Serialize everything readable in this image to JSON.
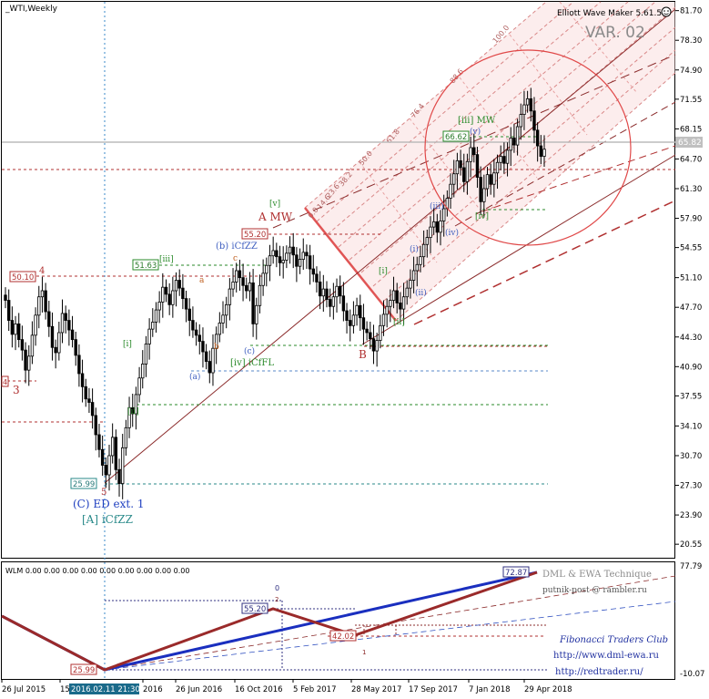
{
  "window": {
    "symbol": "_WTI,Weekly",
    "indicator_name": "Elliott Wave Maker 5.61.5",
    "variant": "VAR. 02",
    "current_price": "65.82"
  },
  "y_axis_main": [
    "81.70",
    "78.30",
    "74.90",
    "71.55",
    "68.15",
    "64.70",
    "61.30",
    "57.90",
    "54.55",
    "51.10",
    "47.70",
    "44.30",
    "40.90",
    "37.55",
    "34.10",
    "30.70",
    "27.30",
    "23.90",
    "20.55"
  ],
  "y_axis_sub": [
    "77.79",
    "-10.07"
  ],
  "x_axis": [
    "26 Jul 2015",
    "15",
    "2016.02.11 21:30",
    "2016",
    "26 Jun 2016",
    "16 Oct 2016",
    "5 Feb 2017",
    "28 May 2017",
    "17 Sep 2017",
    "7 Jan 2018",
    "29 Apr 2018"
  ],
  "labels": {
    "a_mw": "A MW",
    "b": "B",
    "c_ed": "(C) ED ext. 1",
    "a_icfzz": "[A] iCfZZ",
    "b_icfzz": "(b) iCfZZ",
    "iv_icffl": "[iv] iCfFL",
    "iii_mw": "[iii] MW",
    "w3": "3",
    "w4": "4",
    "w5": "5",
    "a_small": "a",
    "b_small": "b",
    "c_small": "c",
    "pa": "(a)",
    "pc": "(c)",
    "pi": "(i)",
    "pii": "(ii)",
    "piii": "(iii)",
    "piv": "(iv)",
    "pv": "(v)",
    "bi": "[i]",
    "bii": "[ii]",
    "biii": "[iii]",
    "bv": "[v]",
    "bi2": "[i]",
    "bii2": "[ii]",
    "biv": "[iv]"
  },
  "price_boxes": {
    "p5010": "50.10",
    "p5163": "51.63",
    "p5520": "55.20",
    "p6662": "66.62",
    "p2599": "25.99",
    "left_tag": "4"
  },
  "fib_labels": [
    "100.0",
    "88.6",
    "76.4",
    "61.8",
    "50.0",
    "38.2",
    "23.6",
    "14.6",
    "0.0"
  ],
  "sub": {
    "title": "WLM 0.00 0.00 0.00 0.00 0.00 0.00 0.00 0.00 0.00",
    "b5520": "55.20",
    "b4202": "42.02",
    "b7287": "72.87",
    "b2599": "25.99",
    "n0": "0",
    "n2": "2",
    "n1": "1"
  },
  "branding": {
    "line1": "DML & EWA Technique",
    "line2": "putnik-post @ rambler.ru",
    "line3": "Fibonacci   Traders   Club",
    "line4": "http://www.dml-ewa.ru",
    "line5": "http://redtrader.ru/"
  },
  "chart_data": {
    "type": "candlestick",
    "title": "_WTI,Weekly",
    "ylim": [
      19.0,
      82.5
    ],
    "x": [
      "26 Jul 2015",
      "15",
      "2016.02.11 21:30",
      "2016",
      "26 Jun 2016",
      "16 Oct 2016",
      "5 Feb 2017",
      "28 May 2017",
      "17 Sep 2017",
      "7 Jan 2018",
      "29 Apr 2018"
    ],
    "weekly_close": [
      48.5,
      46.2,
      44.6,
      45.8,
      44.0,
      42.8,
      40.5,
      42.1,
      44.5,
      46.8,
      48.9,
      49.6,
      47.2,
      45.5,
      43.1,
      42.5,
      44.8,
      47.0,
      46.2,
      45.1,
      44.0,
      42.2,
      40.1,
      38.6,
      37.2,
      36.8,
      35.3,
      33.1,
      31.4,
      29.6,
      28.5,
      30.7,
      32.8,
      29.1,
      27.5,
      31.6,
      33.9,
      36.2,
      35.5,
      37.7,
      39.6,
      41.2,
      43.5,
      45.2,
      46.0,
      47.4,
      48.3,
      50.0,
      49.2,
      48.0,
      49.6,
      50.8,
      49.9,
      48.7,
      47.5,
      46.2,
      45.1,
      44.5,
      43.8,
      42.6,
      41.5,
      40.2,
      43.0,
      44.6,
      45.9,
      46.8,
      48.0,
      49.8,
      50.6,
      51.9,
      51.1,
      50.2,
      49.6,
      50.5,
      45.8,
      47.9,
      50.2,
      51.6,
      52.5,
      53.6,
      54.2,
      53.5,
      52.8,
      53.1,
      53.9,
      54.6,
      53.7,
      52.4,
      53.2,
      54.0,
      53.6,
      52.1,
      51.5,
      50.6,
      49.0,
      49.8,
      48.6,
      47.8,
      48.9,
      50.1,
      49.0,
      47.3,
      46.2,
      45.6,
      46.8,
      47.9,
      46.5,
      45.2,
      44.8,
      44.1,
      42.7,
      43.9,
      45.6,
      46.9,
      47.8,
      48.5,
      49.6,
      48.2,
      47.5,
      48.9,
      49.9,
      50.8,
      51.9,
      52.6,
      53.5,
      54.9,
      55.7,
      56.9,
      57.5,
      56.3,
      57.6,
      59.0,
      60.2,
      61.8,
      63.0,
      64.5,
      63.7,
      62.1,
      64.4,
      66.0,
      65.2,
      62.6,
      59.8,
      61.3,
      62.9,
      61.8,
      63.1,
      64.3,
      65.0,
      64.2,
      65.7,
      67.1,
      66.3,
      68.4,
      69.8,
      70.9,
      71.6,
      70.2,
      68.0,
      66.2,
      65.0,
      65.82
    ],
    "horizontal_levels": [
      {
        "value": 50.1,
        "label": "50.10"
      },
      {
        "value": 51.63,
        "label": "51.63"
      },
      {
        "value": 55.2,
        "label": "55.20"
      },
      {
        "value": 66.62,
        "label": "66.62"
      },
      {
        "value": 25.99,
        "label": "25.99"
      },
      {
        "value": 65.82,
        "label": "65.82"
      }
    ],
    "wave_labels": [
      "3",
      "4",
      "5",
      "(C) ED ext. 1",
      "[A] iCfZZ",
      "A MW",
      "B",
      "(b) iCfZZ",
      "[iv] iCfFL",
      "[iii] MW"
    ],
    "sub_panel": {
      "name": "WLM",
      "ylim": [
        -10.07,
        77.79
      ],
      "points": [
        {
          "label": "25.99",
          "value": 25.99
        },
        {
          "label": "55.20",
          "value": 55.2
        },
        {
          "label": "42.02",
          "value": 42.02
        },
        {
          "label": "72.87",
          "value": 72.87
        }
      ]
    }
  }
}
